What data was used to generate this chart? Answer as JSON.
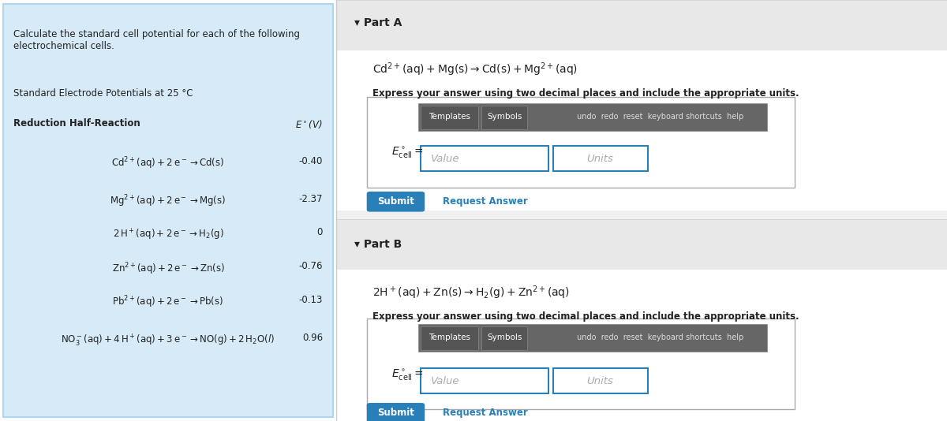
{
  "left_panel": {
    "bg_color": "#d6eaf8",
    "border_color": "#aed6f1",
    "header_text": "Calculate the standard cell potential for each of the following\nelectrochemical cells.",
    "table_title": "Standard Electrode Potentials at 25 °C",
    "col1_header": "Reduction Half-Reaction",
    "col2_header": "$E^\\circ$(V)",
    "rows": [
      {
        "reaction": "$\\mathrm{Cd^{2+}(aq) + 2\\,e^- \\rightarrow Cd(s)}$",
        "value": "-0.40"
      },
      {
        "reaction": "$\\mathrm{Mg^{2+}(aq) + 2\\,e^- \\rightarrow Mg(s)}$",
        "value": "-2.37"
      },
      {
        "reaction": "$\\mathrm{2\\,H^+(aq) + 2\\,e^- \\rightarrow H_2(g)}$",
        "value": "0"
      },
      {
        "reaction": "$\\mathrm{Zn^{2+}(aq) + 2\\,e^- \\rightarrow Zn(s)}$",
        "value": "-0.76"
      },
      {
        "reaction": "$\\mathrm{Pb^{2+}(aq) + 2\\,e^- \\rightarrow Pb(s)}$",
        "value": "-0.13"
      },
      {
        "reaction": "$\\mathrm{NO_3^-(aq) + 4\\,H^+(aq) + 3\\,e^- \\rightarrow NO(g) + 2\\,H_2O(\\mathit{l})}$",
        "value": "0.96"
      }
    ]
  },
  "right_panel": {
    "bg_color": "#f5f5f5",
    "part_a": {
      "title": "Part A",
      "equation": "$\\mathrm{Cd^{2+}(aq) + Mg(s)\\rightarrow Cd(s) + Mg^{2+}(aq)}$",
      "instruction": "Express your answer using two decimal places and include the appropriate units.",
      "toolbar_text": "Templates  Symbols   undo  redo  reset  keyboard shortcuts  help",
      "label": "$E^\\circ_\\mathrm{cell}=$",
      "value_placeholder": "Value",
      "units_placeholder": "Units",
      "submit_text": "Submit",
      "request_text": "Request Answer"
    },
    "part_b": {
      "title": "Part B",
      "equation": "$\\mathrm{2H^+(aq) + Zn(s)\\rightarrow H_2(g) + Zn^{2+}(aq)}$",
      "instruction": "Express your answer using two decimal places and include the appropriate units.",
      "toolbar_text": "Templates  Symbols   undo  redo  reset  keyboard shortcuts  help",
      "label": "$E^\\circ_\\mathrm{cell}=$",
      "value_placeholder": "Value",
      "units_placeholder": "Units",
      "submit_text": "Submit",
      "request_text": "Request Answer"
    }
  },
  "submit_color": "#2980b9",
  "submit_text_color": "#ffffff",
  "request_color": "#2980b9",
  "divider_color": "#cccccc",
  "input_border_color": "#2980b9",
  "toolbar_bg": "#555555",
  "toolbar_text_color": "#ffffff"
}
